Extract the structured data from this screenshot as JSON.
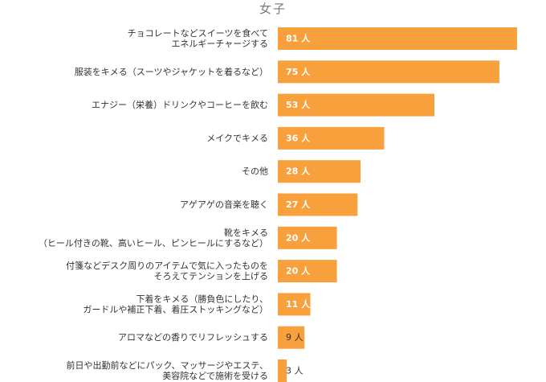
{
  "chart_data": {
    "type": "bar",
    "orientation": "horizontal",
    "title": "女子",
    "unit": "人",
    "bar_color": "#F7A03C",
    "label_color": "#333333",
    "categories": [
      [
        "チョコレートなどスイーツを食べて",
        "エネルギーチャージする"
      ],
      [
        "服装をキメる（スーツやジャケットを着るなど）"
      ],
      [
        "エナジー（栄養）ドリンクやコーヒーを飲む"
      ],
      [
        "メイクでキメる"
      ],
      [
        "その他"
      ],
      [
        "アゲアゲの音楽を聴く"
      ],
      [
        "靴をキメる",
        "（ヒール付きの靴、高いヒール、ピンヒールにするなど）"
      ],
      [
        "付箋などデスク周りのアイテムで気に入ったものを",
        "そろえてテンションを上げる"
      ],
      [
        "下着をキメる（勝負色にしたり、",
        "ガードルや補正下着、着圧ストッキングなど）"
      ],
      [
        "アロマなどの香りでリフレッシュする"
      ],
      [
        "前日や出勤前などにパック、マッサージやエステ、",
        "美容院などで施術を受ける"
      ]
    ],
    "values": [
      81,
      75,
      53,
      36,
      28,
      27,
      20,
      20,
      11,
      9,
      3
    ],
    "xlim": [
      0,
      81
    ]
  }
}
